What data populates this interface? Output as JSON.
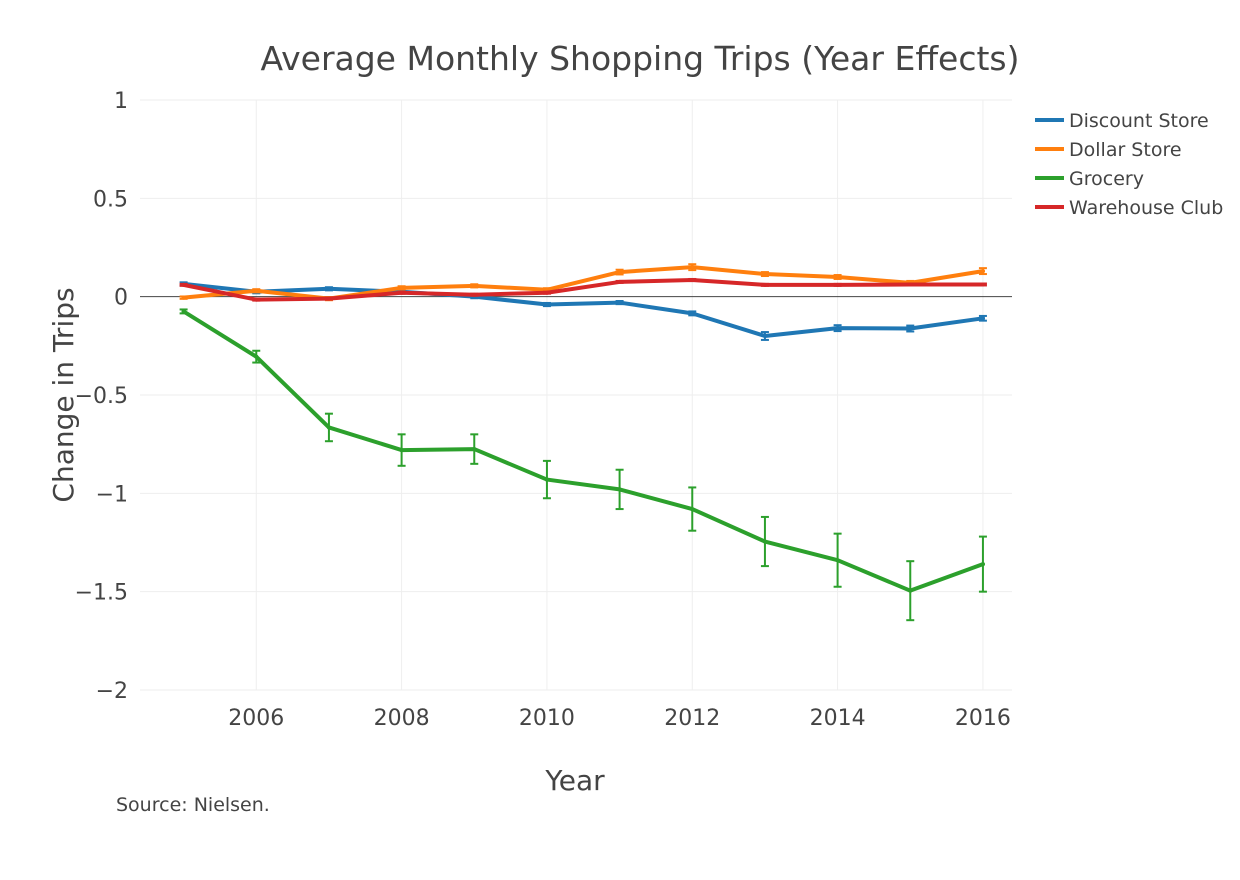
{
  "chart_data": {
    "type": "line",
    "title": "Average Monthly Shopping Trips (Year Effects)",
    "xlabel": "Year",
    "ylabel": "Change in Trips",
    "source_note": "Source: Nielsen.",
    "xlim": [
      2004.4,
      2016.4
    ],
    "ylim": [
      -2,
      1
    ],
    "x_ticks": [
      2006,
      2008,
      2010,
      2012,
      2014,
      2016
    ],
    "y_ticks": [
      1,
      0.5,
      0,
      -0.5,
      -1,
      -1.5,
      -2
    ],
    "y_tick_labels": [
      "1",
      "0.5",
      "0",
      "−0.5",
      "−1",
      "−1.5",
      "−2"
    ],
    "grid": true,
    "legend_position": "top-right",
    "x": [
      2005,
      2006,
      2007,
      2008,
      2009,
      2010,
      2011,
      2012,
      2013,
      2014,
      2015,
      2016
    ],
    "series": [
      {
        "name": "Discount Store",
        "color": "#1f77b4",
        "values": [
          0.065,
          0.025,
          0.04,
          0.025,
          0.0,
          -0.04,
          -0.03,
          -0.085,
          -0.2,
          -0.16,
          -0.162,
          -0.11
        ],
        "error": [
          0.008,
          0.008,
          0.008,
          0.008,
          0.008,
          0.008,
          0.008,
          0.01,
          0.02,
          0.015,
          0.015,
          0.012
        ]
      },
      {
        "name": "Dollar Store",
        "color": "#ff7f0e",
        "values": [
          -0.005,
          0.03,
          -0.01,
          0.045,
          0.055,
          0.035,
          0.125,
          0.15,
          0.115,
          0.1,
          0.07,
          0.13
        ],
        "error": [
          0.006,
          0.008,
          0.008,
          0.008,
          0.008,
          0.008,
          0.012,
          0.015,
          0.01,
          0.01,
          0.01,
          0.015
        ]
      },
      {
        "name": "Grocery",
        "color": "#2ca02c",
        "values": [
          -0.075,
          -0.305,
          -0.665,
          -0.78,
          -0.775,
          -0.93,
          -0.98,
          -1.08,
          -1.245,
          -1.34,
          -1.495,
          -1.36
        ],
        "error": [
          0.01,
          0.03,
          0.07,
          0.08,
          0.075,
          0.095,
          0.1,
          0.11,
          0.125,
          0.135,
          0.15,
          0.14
        ]
      },
      {
        "name": "Warehouse Club",
        "color": "#d62728",
        "values": [
          0.06,
          -0.015,
          -0.01,
          0.02,
          0.01,
          0.02,
          0.075,
          0.085,
          0.06,
          0.06,
          0.062,
          0.062
        ],
        "error": [
          0.005,
          0.005,
          0.005,
          0.005,
          0.005,
          0.005,
          0.005,
          0.005,
          0.005,
          0.005,
          0.005,
          0.005
        ]
      }
    ]
  }
}
